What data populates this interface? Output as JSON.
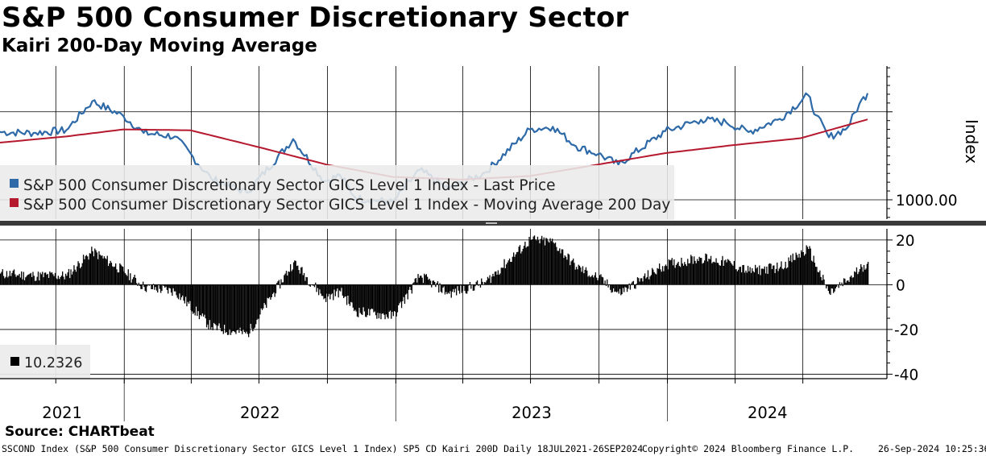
{
  "header": {
    "title": "S&P 500 Consumer Discretionary Sector",
    "subtitle": "Kairi 200-Day Moving Average"
  },
  "colors": {
    "price": "#2e6aa8",
    "moving_average": "#b5192e",
    "kairi": "#000000",
    "grid": "#000000"
  },
  "chart_data": [
    {
      "type": "line",
      "panel": "upper",
      "yaxis_label": "Index",
      "yaxis_tick_labels": [
        "1000.00"
      ],
      "x_range": [
        "2021-07-18",
        "2024-09-26"
      ],
      "ylim": [
        890,
        1760
      ],
      "legend_placement": "bottom-left",
      "series": [
        {
          "name": "S&P 500 Consumer Discretionary Sector GICS Level 1 Index - Last Price",
          "last_value_label": "1605.68",
          "x": [
            "2021-07-18",
            "2021-09-01",
            "2021-10-15",
            "2021-11-19",
            "2021-12-31",
            "2022-01-27",
            "2022-03-10",
            "2022-04-28",
            "2022-06-15",
            "2022-08-16",
            "2022-09-27",
            "2022-10-18",
            "2022-11-08",
            "2022-12-28",
            "2023-02-02",
            "2023-03-13",
            "2023-05-01",
            "2023-06-30",
            "2023-07-31",
            "2023-08-31",
            "2023-09-30",
            "2023-10-27",
            "2023-12-29",
            "2024-02-15",
            "2024-03-20",
            "2024-04-19",
            "2024-05-31",
            "2024-07-08",
            "2024-07-19",
            "2024-08-05",
            "2024-08-30",
            "2024-09-15",
            "2024-09-26"
          ],
          "values": [
            1385,
            1380,
            1395,
            1560,
            1475,
            1380,
            1360,
            1120,
            1040,
            1345,
            1105,
            1140,
            1010,
            985,
            1170,
            1060,
            1155,
            1400,
            1415,
            1305,
            1260,
            1200,
            1390,
            1455,
            1440,
            1385,
            1460,
            1595,
            1480,
            1355,
            1410,
            1545,
            1605.68
          ]
        },
        {
          "name": "S&P 500 Consumer Discretionary Sector GICS Level 1 Index - Moving Average 200 Day",
          "last_value_label": "1456.70",
          "x": [
            "2021-07-18",
            "2021-10-15",
            "2021-12-31",
            "2022-03-31",
            "2022-06-30",
            "2022-09-30",
            "2022-12-28",
            "2023-03-31",
            "2023-06-30",
            "2023-09-29",
            "2023-12-29",
            "2024-03-28",
            "2024-06-28",
            "2024-09-26"
          ],
          "values": [
            1325,
            1360,
            1400,
            1395,
            1300,
            1200,
            1130,
            1115,
            1135,
            1200,
            1265,
            1310,
            1350,
            1456.7
          ]
        }
      ]
    },
    {
      "type": "bar",
      "panel": "lower",
      "x_range": [
        "2021-07-18",
        "2024-09-26"
      ],
      "ylim": [
        -42,
        25
      ],
      "yaxis_tick_labels": [
        "20",
        "0",
        "-20",
        "-40"
      ],
      "legend_placement": "bottom-left",
      "series": [
        {
          "name": "10.2326",
          "last_value_label": "10.2326",
          "x": [
            "2021-07-18",
            "2021-09-01",
            "2021-10-15",
            "2021-11-19",
            "2021-12-31",
            "2022-01-27",
            "2022-03-10",
            "2022-04-28",
            "2022-06-15",
            "2022-08-16",
            "2022-09-27",
            "2022-10-18",
            "2022-11-08",
            "2022-12-28",
            "2023-02-02",
            "2023-03-13",
            "2023-05-01",
            "2023-06-30",
            "2023-07-31",
            "2023-08-31",
            "2023-09-30",
            "2023-10-27",
            "2023-12-29",
            "2024-02-15",
            "2024-03-20",
            "2024-04-19",
            "2024-05-31",
            "2024-07-08",
            "2024-07-19",
            "2024-08-05",
            "2024-08-30",
            "2024-09-15",
            "2024-09-26"
          ],
          "values": [
            5,
            4,
            4,
            15,
            6,
            -1,
            -3,
            -19,
            -22,
            10,
            -6,
            -3,
            -12,
            -14,
            4,
            -4,
            1,
            20,
            19,
            8,
            3,
            -4,
            9,
            12,
            10,
            6,
            8,
            16,
            8,
            -4,
            2,
            7,
            10.2326
          ]
        }
      ]
    }
  ],
  "xaxis": {
    "year_labels": [
      "2021",
      "2022",
      "2023",
      "2024"
    ]
  },
  "footer": {
    "source": "Source: CHARTbeat",
    "left": "SSCOND Index (S&P 500 Consumer Discretionary Sector GICS Level 1 Index) SP5 CD Kairi 200D  Daily 18JUL2021-26SEP2024",
    "mid": "Copyright© 2024 Bloomberg Finance L.P.",
    "right": "26-Sep-2024 10:25:36"
  }
}
